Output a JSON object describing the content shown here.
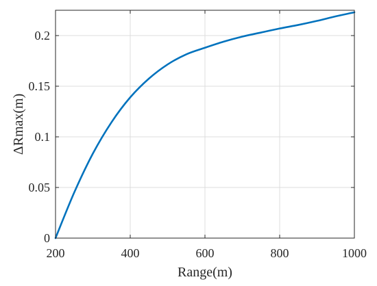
{
  "chart_data": {
    "type": "line",
    "title": "",
    "xlabel": "Range(m)",
    "ylabel": "ΔRmax(m)",
    "xlim": [
      200,
      1000
    ],
    "ylim": [
      0,
      0.225
    ],
    "x_ticks": [
      200,
      400,
      600,
      800,
      1000
    ],
    "y_ticks": [
      0,
      0.05,
      0.1,
      0.15,
      0.2
    ],
    "x_tick_labels": [
      "200",
      "400",
      "600",
      "800",
      "1000"
    ],
    "y_tick_labels": [
      "0",
      "0.05",
      "0.1",
      "0.15",
      "0.2"
    ],
    "grid": true,
    "legend": "none",
    "series": [
      {
        "color": "#0072bd",
        "x": [
          200,
          250,
          300,
          350,
          400,
          450,
          500,
          550,
          600,
          650,
          700,
          750,
          800,
          850,
          900,
          950,
          1000
        ],
        "y": [
          0,
          0.045,
          0.0835,
          0.1145,
          0.139,
          0.1575,
          0.1715,
          0.1815,
          0.188,
          0.194,
          0.199,
          0.203,
          0.207,
          0.2105,
          0.2145,
          0.219,
          0.223
        ]
      }
    ]
  }
}
